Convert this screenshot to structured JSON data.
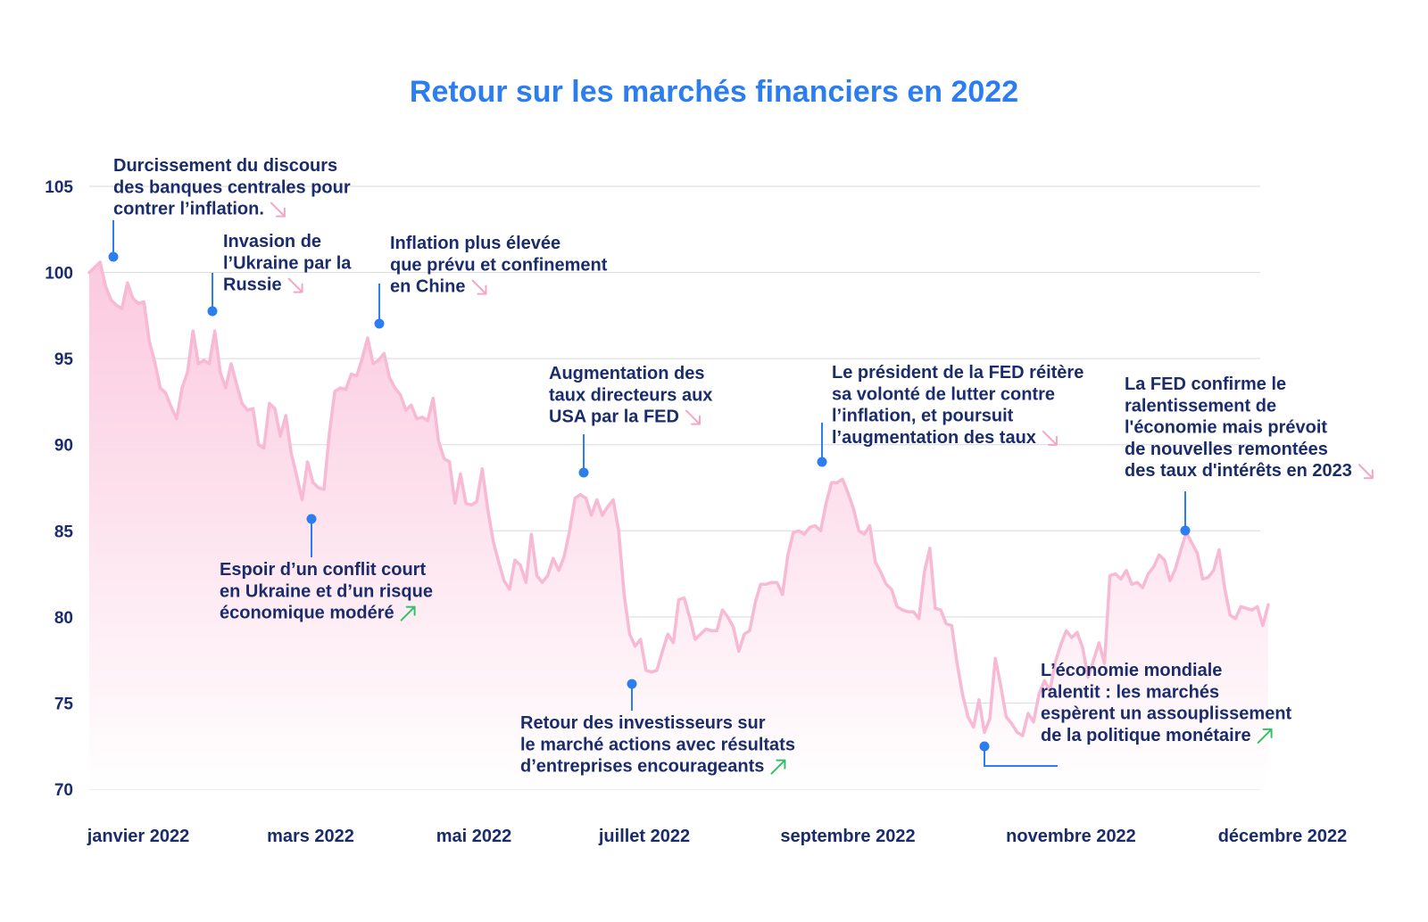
{
  "chart_data": {
    "type": "area",
    "title": "Retour sur les marchés financiers en 2022",
    "xlabel": "",
    "ylabel": "",
    "ylim": [
      70,
      105
    ],
    "yticks": [
      "105",
      "100",
      "95",
      "90",
      "85",
      "80",
      "75",
      "70"
    ],
    "xtick_labels": [
      "janvier 2022",
      "mars 2022",
      "mai 2022",
      "juillet 2022",
      "septembre 2022",
      "novembre 2022",
      "décembre 2022"
    ],
    "grid": true,
    "colors": {
      "line": "#f7b9d4",
      "fill_top": "#fbc7dd",
      "fill_bottom": "#ffffff",
      "marker": "#2b7df0",
      "text": "#1a2c6b",
      "title": "#2b7df0",
      "down_arrow": "#f3a6c8",
      "up_arrow": "#34c06a",
      "grid": "#d9d9d9"
    },
    "series": [
      {
        "values": [
          100,
          100.3,
          100.6,
          99.2,
          98.4,
          98.1,
          97.9,
          99.4,
          98.5,
          98.2,
          98.3,
          96.0,
          94.8,
          93.3,
          93.0,
          92.2,
          91.5,
          93.3,
          94.2,
          96.6,
          94.7,
          94.9,
          94.7,
          96.6,
          94.2,
          93.3,
          94.7,
          93.5,
          92.4,
          92.0,
          92.1,
          90.0,
          89.8,
          92.4,
          92.1,
          90.5,
          91.7,
          89.5,
          88.2,
          86.8,
          89.0,
          87.8,
          87.5,
          87.4,
          90.7,
          93.1,
          93.3,
          93.2,
          94.1,
          94.0,
          95.0,
          96.2,
          94.7,
          94.9,
          95.3,
          93.9,
          93.3,
          92.9,
          92.0,
          92.3,
          91.5,
          91.6,
          91.4,
          92.7,
          90.2,
          89.2,
          89.0,
          86.6,
          88.3,
          86.6,
          86.5,
          86.7,
          88.6,
          86.3,
          84.4,
          83.2,
          82.1,
          81.6,
          83.3,
          83.0,
          82.0,
          84.8,
          82.4,
          82.0,
          82.4,
          83.4,
          82.7,
          83.5,
          85.0,
          86.9,
          87.1,
          86.9,
          85.9,
          86.8,
          85.9,
          86.4,
          86.8,
          85.0,
          81.3,
          79.0,
          78.3,
          78.7,
          76.9,
          76.8,
          76.9,
          78.0,
          79.0,
          78.5,
          81.0,
          81.1,
          80.0,
          78.7,
          79.0,
          79.3,
          79.2,
          79.2,
          80.4,
          80.0,
          79.4,
          78.0,
          79.0,
          79.2,
          80.8,
          81.9,
          81.9,
          82.0,
          82.0,
          81.3,
          83.6,
          84.9,
          85.0,
          84.8,
          85.2,
          85.3,
          85.0,
          86.6,
          87.8,
          87.8,
          88.0,
          87.2,
          86.3,
          85.0,
          84.8,
          85.3,
          83.2,
          82.6,
          81.9,
          81.6,
          80.6,
          80.4,
          80.3,
          80.3,
          79.9,
          82.6,
          84.0,
          80.5,
          80.4,
          79.6,
          79.5,
          77.3,
          75.5,
          74.2,
          73.6,
          75.2,
          73.3,
          74.1,
          77.6,
          76.0,
          74.2,
          73.8,
          73.3,
          73.1,
          74.4,
          73.9,
          75.5,
          76.3,
          75.7,
          77.4,
          78.4,
          79.2,
          78.8,
          79.1,
          78.2,
          76.5,
          77.5,
          78.5,
          77.3,
          82.4,
          82.5,
          82.2,
          82.7,
          81.9,
          82.0,
          81.7,
          82.5,
          82.9,
          83.6,
          83.3,
          82.1,
          82.8,
          83.9,
          84.9,
          84.3,
          83.7,
          82.2,
          82.3,
          82.7,
          83.9,
          81.7,
          80.1,
          79.9,
          80.6,
          80.5,
          80.4,
          80.6,
          79.5,
          80.7
        ]
      }
    ],
    "annotations": [
      {
        "text": "Durcissement du discours des banques centrales pour contrer l’inflation.",
        "lines": [
          "Durcissement du discours",
          "des banques centrales pour",
          "contrer l’inflation."
        ],
        "trend": "down"
      },
      {
        "text": "Invasion de l’Ukraine par la Russie",
        "lines": [
          "Invasion de",
          "l’Ukraine par la",
          "Russie"
        ],
        "trend": "down"
      },
      {
        "text": "Inflation plus élevée que prévu et confinement en Chine",
        "lines": [
          "Inflation plus élevée",
          "que prévu et confinement",
          "en Chine"
        ],
        "trend": "down"
      },
      {
        "text": "Espoir d’un conflit court en Ukraine et d’un risque économique modéré",
        "lines": [
          "Espoir d’un conflit court",
          "en Ukraine et d’un risque",
          "économique modéré"
        ],
        "trend": "up"
      },
      {
        "text": "Augmentation des taux directeurs aux USA par la FED",
        "lines": [
          "Augmentation des",
          "taux directeurs aux",
          "USA par la FED"
        ],
        "trend": "down"
      },
      {
        "text": "Retour des investisseurs sur le marché actions avec résultats d’entreprises encourageants",
        "lines": [
          "Retour des investisseurs sur",
          "le marché actions avec résultats",
          "d’entreprises encourageants"
        ],
        "trend": "up"
      },
      {
        "text": "Le président de la FED réitère sa volonté de lutter contre l’inflation, et poursuit l’augmentation des taux",
        "lines": [
          "Le président de la FED réitère",
          "sa volonté de lutter contre",
          "l’inflation, et poursuit",
          "l’augmentation des taux"
        ],
        "trend": "down"
      },
      {
        "text": "L’économie mondiale ralentit : les marchés espèrent un assouplissement de la politique monétaire",
        "lines": [
          "L’économie mondiale",
          "ralentit : les marchés",
          "espèrent un assouplissement",
          "de la politique monétaire"
        ],
        "trend": "up"
      },
      {
        "text": "La FED confirme le ralentissement de l'économie mais prévoit de nouvelles remontées des taux d'intérêts en 2023",
        "lines": [
          "La FED confirme le",
          "ralentissement de",
          "l'économie mais prévoit",
          "de nouvelles remontées",
          "des taux d'intérêts en 2023"
        ],
        "trend": "down"
      }
    ]
  }
}
